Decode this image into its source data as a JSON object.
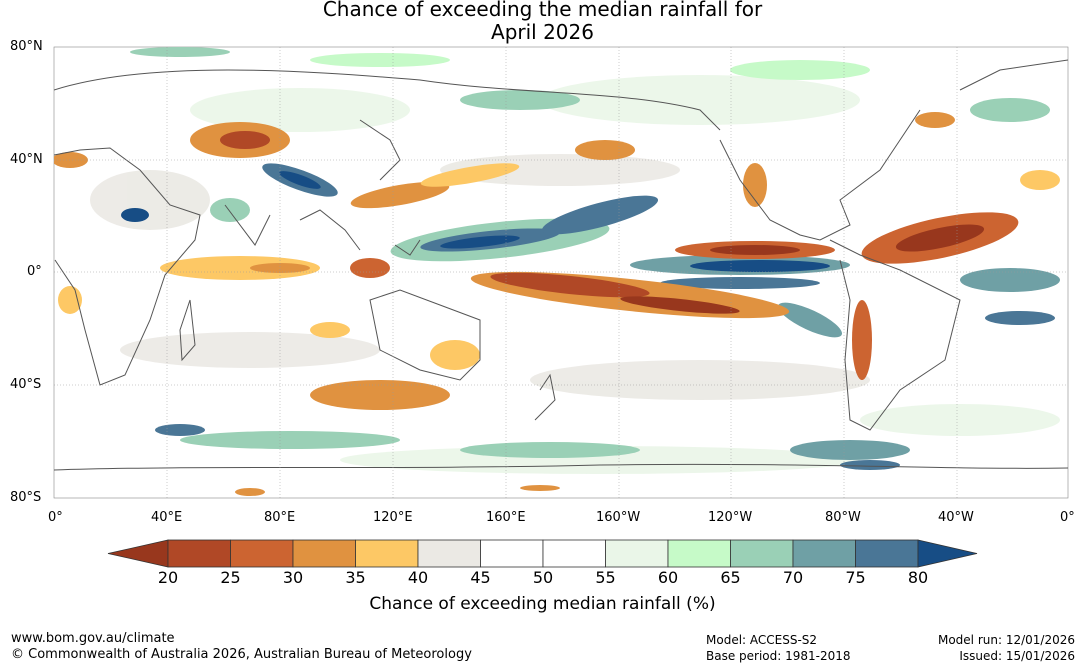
{
  "title": {
    "line1": "Chance of exceeding the median rainfall for",
    "line2": "April 2026"
  },
  "map": {
    "lat_labels": [
      "80°N",
      "40°N",
      "0°",
      "40°S",
      "80°S"
    ],
    "lon_labels": [
      "0°",
      "40°E",
      "80°E",
      "120°E",
      "160°E",
      "160°W",
      "120°W",
      "80°W",
      "40°W",
      "0°"
    ]
  },
  "colorbar": {
    "title": "Chance of exceeding median rainfall (%)",
    "ticks": [
      "20",
      "25",
      "30",
      "35",
      "40",
      "45",
      "50",
      "55",
      "60",
      "65",
      "70",
      "75",
      "80"
    ],
    "colors": [
      "#98371d",
      "#b04826",
      "#cc6431",
      "#e09240",
      "#fdc865",
      "#ebe9e4",
      "#ffffff",
      "#ffffff",
      "#eaf6e8",
      "#c6fac8",
      "#9ad0b6",
      "#6fa0a5",
      "#4a7696",
      "#174d85"
    ]
  },
  "footer": {
    "url": "www.bom.gov.au/climate",
    "copyright": "© Commonwealth of Australia 2026, Australian Bureau of Meteorology",
    "model": "Model: ACCESS-S2",
    "base_period": "Base period: 1981-2018",
    "model_run": "Model run: 12/01/2026",
    "issued": "Issued: 15/01/2026"
  }
}
